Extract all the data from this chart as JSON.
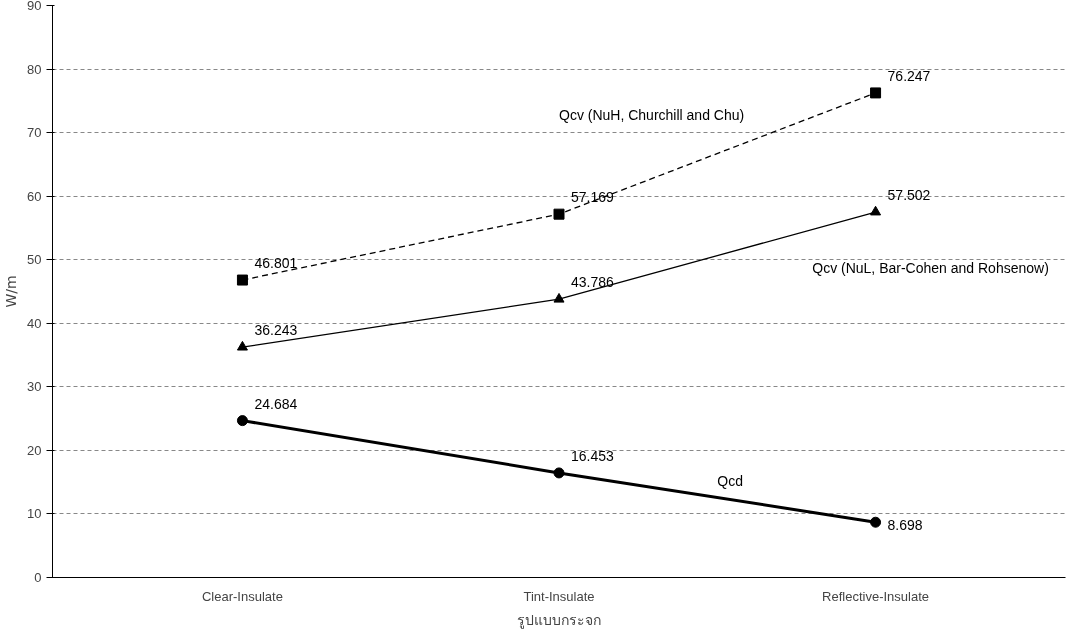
{
  "chart_data": {
    "type": "line",
    "xlabel": "รูปแบบกระจก",
    "ylabel": "W/m",
    "categories": [
      "Clear-Insulate",
      "Tint-Insulate",
      "Reflective-Insulate"
    ],
    "series": [
      {
        "name": "Qcv (NuH, Churchill and Chu)",
        "color": "#000000",
        "values": [
          46.801,
          57.169,
          76.247
        ],
        "marker": "square",
        "line_style": "dashed"
      },
      {
        "name": "Qcv (NuL, Bar-Cohen and Rohsenow)",
        "color": "#000000",
        "values": [
          36.243,
          43.786,
          57.502
        ],
        "marker": "triangle",
        "line_style": "solid"
      },
      {
        "name": "Qcd",
        "color": "#000000",
        "values": [
          24.684,
          16.453,
          8.698
        ],
        "marker": "circle",
        "line_style": "solid"
      }
    ],
    "ylim": [
      0,
      90
    ],
    "yticks": [
      0,
      10,
      20,
      30,
      40,
      50,
      60,
      70,
      80,
      90
    ],
    "grid": "y",
    "data_labels": true
  }
}
